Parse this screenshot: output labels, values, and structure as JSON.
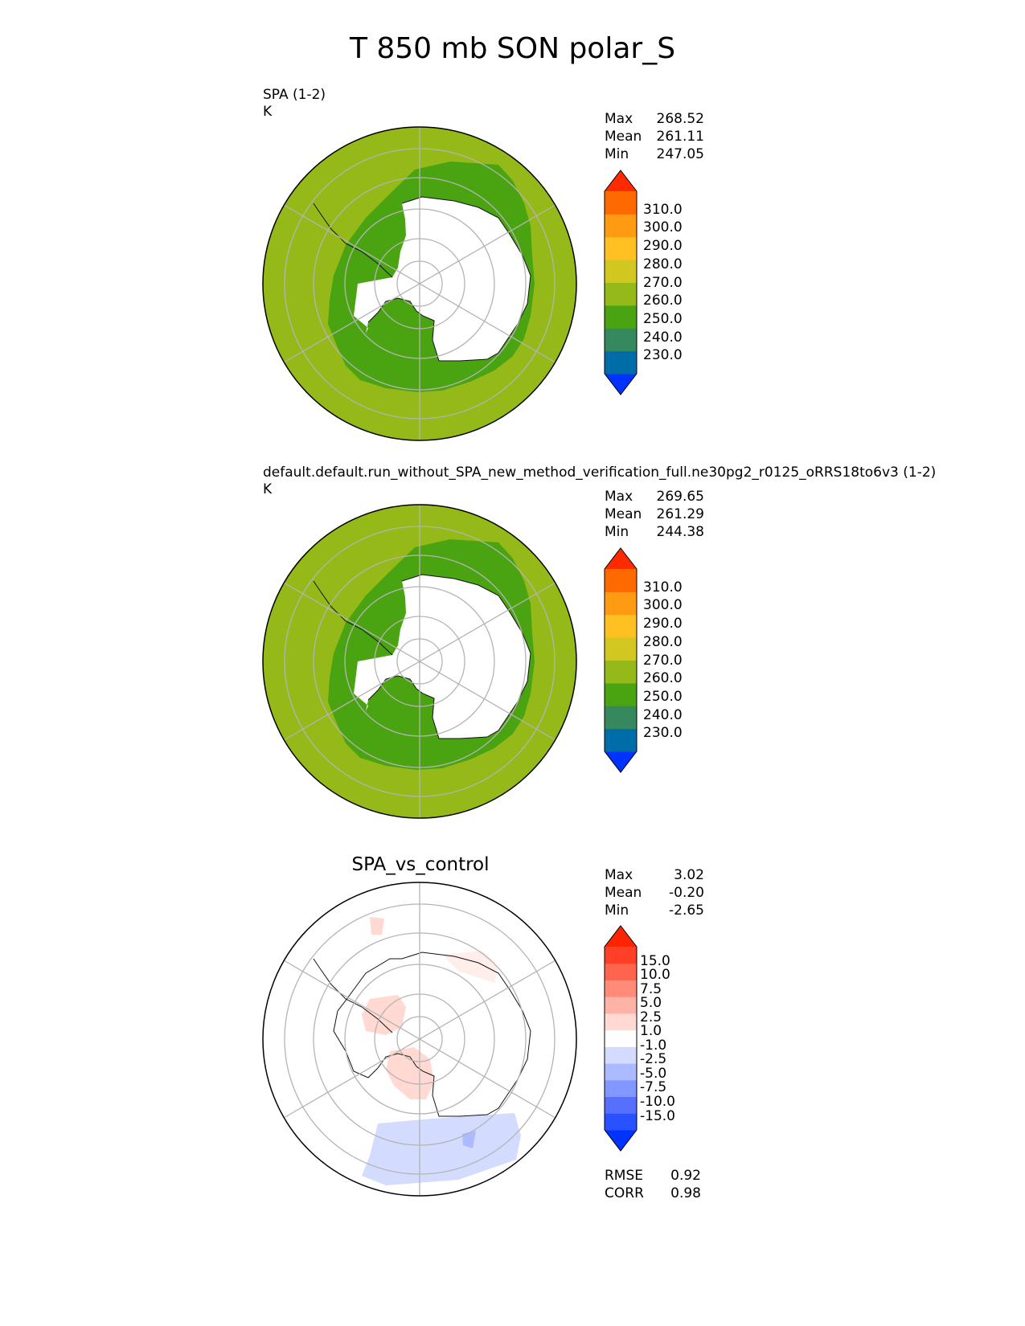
{
  "figure": {
    "title": "T 850 mb SON polar_S"
  },
  "colors": {
    "abs_levels": [
      "#0033ff",
      "#006ca8",
      "#36885f",
      "#4aa412",
      "#94b918",
      "#d2c620",
      "#ffc122",
      "#ff9b12",
      "#ff6a00",
      "#ff2a00"
    ],
    "diff_levels": [
      "#0033ff",
      "#2a51ff",
      "#566fff",
      "#8297ff",
      "#acbbff",
      "#d3dcff",
      "#ffffff",
      "#ffd9d2",
      "#ffb3a6",
      "#ff8b78",
      "#ff654e",
      "#ff4026",
      "#ff2400"
    ],
    "land_white": "#ffffff",
    "ocean_outer": "#94b918",
    "ocean_inner": "#4aa412",
    "grid": "#b4b4b4"
  },
  "panels": [
    {
      "title": "SPA (1-2)",
      "units": "K",
      "stats": [
        {
          "label": "Max",
          "value": "268.52"
        },
        {
          "label": "Mean",
          "value": "261.11"
        },
        {
          "label": "Min",
          "value": "247.05"
        }
      ],
      "colorbar_ticks": [
        "310.0",
        "300.0",
        "290.0",
        "280.0",
        "270.0",
        "260.0",
        "250.0",
        "240.0",
        "230.0"
      ]
    },
    {
      "title": "default.default.run_without_SPA_new_method_verification_full.ne30pg2_r0125_oRRS18to6v3 (1-2)",
      "units": "K",
      "stats": [
        {
          "label": "Max",
          "value": "269.65"
        },
        {
          "label": "Mean",
          "value": "261.29"
        },
        {
          "label": "Min",
          "value": "244.38"
        }
      ],
      "colorbar_ticks": [
        "310.0",
        "300.0",
        "290.0",
        "280.0",
        "270.0",
        "260.0",
        "250.0",
        "240.0",
        "230.0"
      ]
    },
    {
      "title": "SPA_vs_control",
      "stats": [
        {
          "label": "Max",
          "value": "3.02"
        },
        {
          "label": "Mean",
          "value": "-0.20"
        },
        {
          "label": "Min",
          "value": "-2.65"
        }
      ],
      "colorbar_ticks": [
        "15.0",
        "10.0",
        "7.5",
        "5.0",
        "2.5",
        "1.0",
        "-1.0",
        "-2.5",
        "-5.0",
        "-7.5",
        "-10.0",
        "-15.0"
      ],
      "metrics": [
        {
          "label": "RMSE",
          "value": "0.92"
        },
        {
          "label": "CORR",
          "value": "0.98"
        }
      ]
    }
  ],
  "chart_data": [
    {
      "type": "heatmap",
      "projection": "south polar stereographic",
      "title": "SPA (1-2)",
      "units": "K",
      "levels": [
        230,
        240,
        250,
        260,
        270,
        280,
        290,
        300,
        310
      ],
      "extend": "both",
      "max": 268.52,
      "mean": 261.11,
      "min": 247.05,
      "field_summary": "outer ocean 260-270 K, ocean ring near Antarctica 250-260 K, Antarctic continent masked"
    },
    {
      "type": "heatmap",
      "projection": "south polar stereographic",
      "title": "default.default.run_without_SPA_new_method_verification_full.ne30pg2_r0125_oRRS18to6v3 (1-2)",
      "units": "K",
      "levels": [
        230,
        240,
        250,
        260,
        270,
        280,
        290,
        300,
        310
      ],
      "extend": "both",
      "max": 269.65,
      "mean": 261.29,
      "min": 244.38
    },
    {
      "type": "heatmap",
      "projection": "south polar stereographic",
      "title": "SPA_vs_control",
      "levels": [
        -15,
        -10,
        -7.5,
        -5,
        -2.5,
        -1,
        1,
        2.5,
        5,
        7.5,
        10,
        15
      ],
      "extend": "both",
      "max": 3.02,
      "mean": -0.2,
      "min": -2.65,
      "rmse": 0.92,
      "corr": 0.98
    }
  ]
}
